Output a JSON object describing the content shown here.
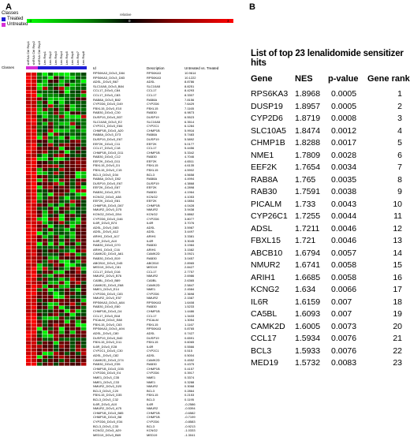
{
  "panel_a": {
    "letter": "A",
    "legend": {
      "title": "Classes",
      "items": [
        {
          "label": "Treated",
          "color": "#1f1fd6"
        },
        {
          "label": "Untreated",
          "color": "#d62fd6"
        }
      ]
    },
    "scale": {
      "label": "relative",
      "min": "-3",
      "mid": "0",
      "max": "3"
    },
    "column_labels": [
      "shRNA Ctrl Rep1",
      "shRNA Ctrl Rep2",
      "shRNA Ctrl Rep3",
      "Len Rep1",
      "Len Rep2",
      "Len Rep3",
      "Len Rep4",
      "Len Rep5",
      "Len Rep6",
      "Len Rep7",
      "Len Rep8"
    ],
    "classes_label": "Classes",
    "list_headers": {
      "id": "Id",
      "description": "Description",
      "score": "Untreated vs. Treated"
    },
    "genes": [
      [
        "RPS6KA3_DGv3_D84",
        "RPS6KA3",
        "10.9614"
      ],
      [
        "RPS6KA3_DGv3_D83",
        "RPS6KA3",
        "10.1222"
      ],
      [
        "ADSL_DGv3_B67",
        "ADSL",
        "8.8786"
      ],
      [
        "SLC10A5_DGv3_B84",
        "SLC10A5",
        "8.8251"
      ],
      [
        "CCL17_DGv3_C84",
        "CCL17",
        "8.4293"
      ],
      [
        "CCL17_DGv3_C83",
        "CCL17",
        "8.3307"
      ],
      [
        "RAB8A_DGv3_B82",
        "RAB8A",
        "7.8156"
      ],
      [
        "CYP2D6_DGv3_D49",
        "CYP2D6",
        "7.6429"
      ],
      [
        "FBXL15_DGv3_E10",
        "FBXL15",
        "7.1165"
      ],
      [
        "RAB30_DGv3_C30",
        "RAB30",
        "6.9873"
      ],
      [
        "DUSP19_DGv3_B37",
        "DUSP19",
        "6.5523"
      ],
      [
        "SLC10A5_DGv3_E2",
        "SLC10A5",
        "6.3514"
      ],
      [
        "CYP2C1_DGv3_E84",
        "CYP2C1",
        "6.1284"
      ],
      [
        "CHMP1B_DGv3_A20",
        "CHMP1B",
        "5.9916"
      ],
      [
        "RAB8A_DGv3_D73",
        "RAB8A",
        "5.7483"
      ],
      [
        "DUSP19_DGv3_E67",
        "DUSP19",
        "5.5892"
      ],
      [
        "EEF2K_DGv3_C11",
        "EEF2K",
        "5.0177"
      ],
      [
        "CCL17_DGv3_C18",
        "CCL17",
        "5.4456"
      ],
      [
        "CHMP1B_DGv3_D11",
        "CHMP1B",
        "5.3342"
      ],
      [
        "RAB30_DGv3_C12",
        "RAB30",
        "4.7046"
      ],
      [
        "EEF2K_DGv3_D11",
        "EEF2K",
        "4.6511"
      ],
      [
        "FBXL15_DGv3_D1",
        "FBXL15",
        "4.6135"
      ],
      [
        "FBXL15_DGv3_C15",
        "FBXL15",
        "4.5902"
      ],
      [
        "BCL3_DGv3_D34",
        "BCL3",
        "4.5658"
      ],
      [
        "RAB8A_DGv3_D52",
        "RAB8A",
        "4.4994"
      ],
      [
        "DUSP19_DGv3_E67",
        "DUSP19",
        "4.3868"
      ],
      [
        "EEF2K_DGv3_E87",
        "EEF2K",
        "4.2898"
      ],
      [
        "RAB30_DGv3_B73",
        "RAB30",
        "4.1964"
      ],
      [
        "KCNG2_DGv3_A38",
        "KCNG2",
        "4.1053"
      ],
      [
        "EEF2K_DGv3_E81",
        "EEF2K",
        "4.0854"
      ],
      [
        "CHMP1B_DGv3_D67",
        "CHMP1B",
        "4.0428"
      ],
      [
        "NMUR2_DGv3_D75",
        "NMUR2",
        "3.9438"
      ],
      [
        "KCNG2_DGv3_D54",
        "KCNG2",
        "3.8862"
      ],
      [
        "CYP2D6_DGv3_D46",
        "CYP2D6",
        "3.8077"
      ],
      [
        "IL6R_DGv3_B74",
        "IL6R",
        "3.7076"
      ],
      [
        "ADSL_DGv3_D83",
        "ADSL",
        "3.5987"
      ],
      [
        "ADSL_DGv3_A12",
        "ADSL",
        "3.4497"
      ],
      [
        "ARIH1_DGv3_A17",
        "ARIH1",
        "3.3381"
      ],
      [
        "IL6R_DGv3_A10",
        "IL6R",
        "3.3045"
      ],
      [
        "RAB30_DGv3_D70",
        "RAB30",
        "3.1984"
      ],
      [
        "ARIH1_DGv3_C16",
        "ARIH1",
        "3.1582"
      ],
      [
        "CAMK2D_DGv3_A61",
        "CAMK2D",
        "3.0921"
      ],
      [
        "RAB30_DGv3_B19",
        "RAB30",
        "3.0457"
      ],
      [
        "ABCB10_DGv3_D45",
        "ABCB10",
        "2.8965"
      ],
      [
        "MED19_DGv3_C81",
        "MED19",
        "2.8427"
      ],
      [
        "CCL17_DGv3_D16",
        "CCL17",
        "2.7757"
      ],
      [
        "NMUR2_DGv3_B76",
        "NMUR2",
        "2.6986"
      ],
      [
        "CA5BL_DGv3_B89",
        "CA5BL",
        "2.6365"
      ],
      [
        "CAMK2D_DGv3_E68",
        "CAMK2D",
        "2.5847"
      ],
      [
        "NME1_DGv3_E14",
        "NME1",
        "2.4584"
      ],
      [
        "CYP2D6_DGv3_C83",
        "CYP2D6",
        "2.3698"
      ],
      [
        "NMUR2_DGv3_E57",
        "NMUR2",
        "2.1587"
      ],
      [
        "RPS6KA3_DGv3_A84",
        "RPS6KA3",
        "1.6408"
      ],
      [
        "RAB30_DGv3_E80",
        "RAB30",
        "1.5233"
      ],
      [
        "CHMP1B_DGv3_D4",
        "CHMP1B",
        "1.4486"
      ],
      [
        "CCL17_DGv3_B18",
        "CCL17",
        "1.3433"
      ],
      [
        "PICALM_DGv3_E88",
        "PICALM",
        "1.3054"
      ],
      [
        "FBXL15_DGv3_C63",
        "FBXL15",
        "1.1167"
      ],
      [
        "RPS6KA3_DGv3_A94",
        "RPS6KA3",
        "0.8765"
      ],
      [
        "ADSL_DGv3_C80",
        "ADSL",
        "0.7427"
      ],
      [
        "DUSP19_DGv3_B40",
        "DUSP19",
        "0.6591"
      ],
      [
        "FBXL15_DGv3_D11",
        "FBXL15",
        "0.6065"
      ],
      [
        "IL6R_DGv3_E28",
        "IL6R",
        "0.5566"
      ],
      [
        "CYP2C1_DGv3_C30",
        "CYP2C1",
        "0.515"
      ],
      [
        "ADSL_DGv3_C82",
        "ADSL",
        "0.5004"
      ],
      [
        "CAMK2D_DGv3_D74",
        "CAMK2D",
        "0.4552"
      ],
      [
        "RAB30_DGv3_E35",
        "RAB30",
        "0.4375"
      ],
      [
        "CHMP1B_DGv3_D35",
        "CHMP1B",
        "0.4157"
      ],
      [
        "CYP2D6_DGv3_E4",
        "CYP2D6",
        "0.3917"
      ],
      [
        "NME1_DGv3_C35",
        "NME1",
        "0.3374"
      ],
      [
        "NME1_DGv3_C33",
        "NME1",
        "0.3288"
      ],
      [
        "NMUR2_DGv3_D20",
        "NMUR2",
        "0.3068"
      ],
      [
        "BCL3_DGv3_C20",
        "BCL3",
        "0.2864"
      ],
      [
        "FBXL15_DGv3_D35",
        "FBXL15",
        "0.2153"
      ],
      [
        "BCL3_DGv3_C32",
        "BCL3",
        "0.1195"
      ],
      [
        "IL6R_DGv3_A10",
        "IL6R",
        "-0.2586"
      ],
      [
        "NMUR2_DGv3_A75",
        "NMUR2",
        "-0.5394"
      ],
      [
        "CHMP1B_DGv3_B85",
        "CHMP1B",
        "-0.6582"
      ],
      [
        "CHMP1B_DGv3_B8",
        "CHMP1B",
        "-0.7199"
      ],
      [
        "CYP2D6_DGv3_E34",
        "CYP2D6",
        "-0.8583"
      ],
      [
        "BCL3_DGv3_C33",
        "BCL3",
        "-0.9213"
      ],
      [
        "KCNG2_DGv3_A29",
        "KCNG2",
        "-1.0333"
      ],
      [
        "MED19_DGv3_B69",
        "MED19",
        "-1.3041"
      ]
    ]
  },
  "panel_b": {
    "letter": "B",
    "title": "List of top 23 lenalidomide sensitizer hits",
    "headers": {
      "gene": "Gene",
      "nes": "NES",
      "pvalue": "p-value",
      "rank": "Gene rank"
    },
    "rows": [
      {
        "gene": "RPS6KA3",
        "nes": "1.8968",
        "p": "0.0005",
        "rank": "1"
      },
      {
        "gene": "DUSP19",
        "nes": "1.8957",
        "p": "0.0005",
        "rank": "2"
      },
      {
        "gene": "CYP2D6",
        "nes": "1.8719",
        "p": "0.0008",
        "rank": "3"
      },
      {
        "gene": "SLC10A5",
        "nes": "1.8474",
        "p": "0.0012",
        "rank": "4"
      },
      {
        "gene": "CHMP1B",
        "nes": "1.8288",
        "p": "0.0017",
        "rank": "5"
      },
      {
        "gene": "NME1",
        "nes": "1.7809",
        "p": "0.0028",
        "rank": "6"
      },
      {
        "gene": "EEF2K",
        "nes": "1.7654",
        "p": "0.0034",
        "rank": "7"
      },
      {
        "gene": "RAB8A",
        "nes": "1.765",
        "p": "0.0035",
        "rank": "8"
      },
      {
        "gene": "RAB30",
        "nes": "1.7591",
        "p": "0.0038",
        "rank": "9"
      },
      {
        "gene": "PICALM",
        "nes": "1.733",
        "p": "0.0043",
        "rank": "10"
      },
      {
        "gene": "CYP26C1",
        "nes": "1.7255",
        "p": "0.0044",
        "rank": "11"
      },
      {
        "gene": "ADSL",
        "nes": "1.7211",
        "p": "0.0046",
        "rank": "12"
      },
      {
        "gene": "FBXL15",
        "nes": "1.721",
        "p": "0.0046",
        "rank": "13"
      },
      {
        "gene": "ABCB10",
        "nes": "1.6794",
        "p": "0.0057",
        "rank": "14"
      },
      {
        "gene": "NMUR2",
        "nes": "1.6741",
        "p": "0.0058",
        "rank": "15"
      },
      {
        "gene": "ARIH1",
        "nes": "1.6685",
        "p": "0.0058",
        "rank": "16"
      },
      {
        "gene": "KCNG2",
        "nes": "1.634",
        "p": "0.0066",
        "rank": "17"
      },
      {
        "gene": "IL6R",
        "nes": "1.6159",
        "p": "0.007",
        "rank": "18"
      },
      {
        "gene": "CA5BL",
        "nes": "1.6093",
        "p": "0.007",
        "rank": "19"
      },
      {
        "gene": "CAMK2D",
        "nes": "1.6005",
        "p": "0.0073",
        "rank": "20"
      },
      {
        "gene": "CCL17",
        "nes": "1.5934",
        "p": "0.0076",
        "rank": "21"
      },
      {
        "gene": "BCL3",
        "nes": "1.5933",
        "p": "0.0076",
        "rank": "22"
      },
      {
        "gene": "MED19",
        "nes": "1.5732",
        "p": "0.0083",
        "rank": "23"
      }
    ]
  }
}
